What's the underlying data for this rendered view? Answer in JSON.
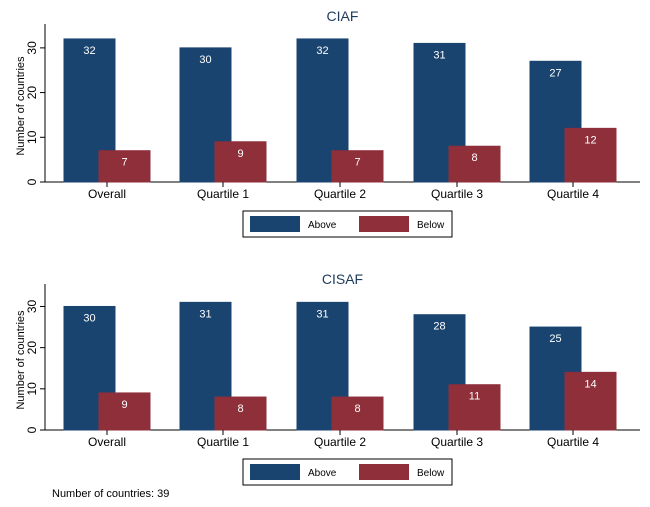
{
  "chart_data": [
    {
      "type": "bar",
      "title": "CIAF",
      "ylabel": "Number of countries",
      "xlabel": "",
      "ylim": [
        0,
        34
      ],
      "yticks": [
        0,
        10,
        20,
        30
      ],
      "categories": [
        "Overall",
        "Quartile 1",
        "Quartile 2",
        "Quartile 3",
        "Quartile 4"
      ],
      "series": [
        {
          "name": "Above",
          "values": [
            32,
            30,
            32,
            31,
            27
          ],
          "color": "#1a4470"
        },
        {
          "name": "Below",
          "values": [
            7,
            9,
            7,
            8,
            12
          ],
          "color": "#8e2f3a"
        }
      ],
      "legend": "bottom-center",
      "grid": false
    },
    {
      "type": "bar",
      "title": "CISAF",
      "ylabel": "Number of countries",
      "xlabel": "",
      "ylim": [
        0,
        34
      ],
      "yticks": [
        0,
        10,
        20,
        30
      ],
      "categories": [
        "Overall",
        "Quartile 1",
        "Quartile 2",
        "Quartile 3",
        "Quartile 4"
      ],
      "series": [
        {
          "name": "Above",
          "values": [
            30,
            31,
            31,
            28,
            25
          ],
          "color": "#1a4470"
        },
        {
          "name": "Below",
          "values": [
            9,
            8,
            8,
            11,
            14
          ],
          "color": "#8e2f3a"
        }
      ],
      "legend": "bottom-center",
      "grid": false
    }
  ],
  "note": "Number of countries: 39"
}
